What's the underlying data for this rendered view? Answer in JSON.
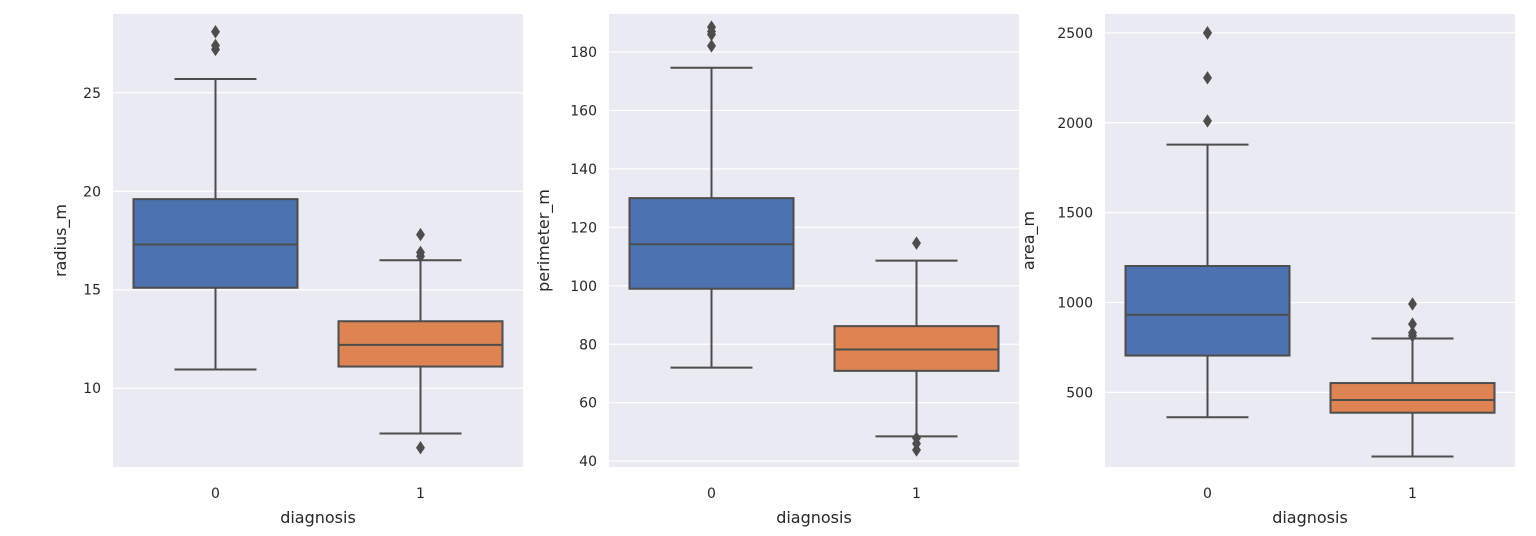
{
  "figure": {
    "background": "#ffffff",
    "axes_facecolor": "#eaeaf2",
    "grid_color": "#ffffff",
    "line_color": "#4d4d4d"
  },
  "chart_data": [
    {
      "type": "box",
      "xlabel": "diagnosis",
      "ylabel": "radius_m",
      "categories": [
        "0",
        "1"
      ],
      "colors": [
        "#4c72b0",
        "#dd8452"
      ],
      "ylim": [
        6.0,
        29.0
      ],
      "yticks": [
        10,
        15,
        20,
        25
      ],
      "ytick_labels": [
        "10",
        "15",
        "20",
        "25"
      ],
      "boxes": [
        {
          "whisker_low": 10.95,
          "q1": 15.1,
          "median": 17.3,
          "q3": 19.6,
          "whisker_high": 25.7,
          "outliers": [
            27.2,
            27.4,
            28.1
          ]
        },
        {
          "whisker_low": 7.7,
          "q1": 11.1,
          "median": 12.2,
          "q3": 13.4,
          "whisker_high": 16.5,
          "outliers": [
            6.98,
            16.7,
            16.9,
            17.8
          ]
        }
      ]
    },
    {
      "type": "box",
      "xlabel": "diagnosis",
      "ylabel": "perimeter_m",
      "categories": [
        "0",
        "1"
      ],
      "colors": [
        "#4c72b0",
        "#dd8452"
      ],
      "ylim": [
        38.0,
        193.0
      ],
      "yticks": [
        40,
        60,
        80,
        100,
        120,
        140,
        160,
        180
      ],
      "ytick_labels": [
        "40",
        "60",
        "80",
        "100",
        "120",
        "140",
        "160",
        "180"
      ],
      "boxes": [
        {
          "whisker_low": 72.0,
          "q1": 99.0,
          "median": 114.2,
          "q3": 130.0,
          "whisker_high": 174.6,
          "outliers": [
            182.1,
            186.0,
            187.0,
            188.5
          ]
        },
        {
          "whisker_low": 48.5,
          "q1": 70.9,
          "median": 78.2,
          "q3": 86.2,
          "whisker_high": 108.6,
          "outliers": [
            43.8,
            46.0,
            47.9,
            114.6
          ]
        }
      ]
    },
    {
      "type": "box",
      "xlabel": "diagnosis",
      "ylabel": "area_m",
      "categories": [
        "0",
        "1"
      ],
      "colors": [
        "#4c72b0",
        "#dd8452"
      ],
      "ylim": [
        85.0,
        2605.0
      ],
      "yticks": [
        500,
        1000,
        1500,
        2000,
        2500
      ],
      "ytick_labels": [
        "500",
        "1000",
        "1500",
        "2000",
        "2500"
      ],
      "boxes": [
        {
          "whisker_low": 362.0,
          "q1": 705.0,
          "median": 932.0,
          "q3": 1203.0,
          "whisker_high": 1878.0,
          "outliers": [
            2010.0,
            2250.0,
            2499.0,
            2501.0
          ]
        },
        {
          "whisker_low": 143.5,
          "q1": 387.0,
          "median": 458.0,
          "q3": 552.0,
          "whisker_high": 800.0,
          "outliers": [
            815.0,
            832.0,
            880.0,
            992.0
          ]
        }
      ]
    }
  ]
}
